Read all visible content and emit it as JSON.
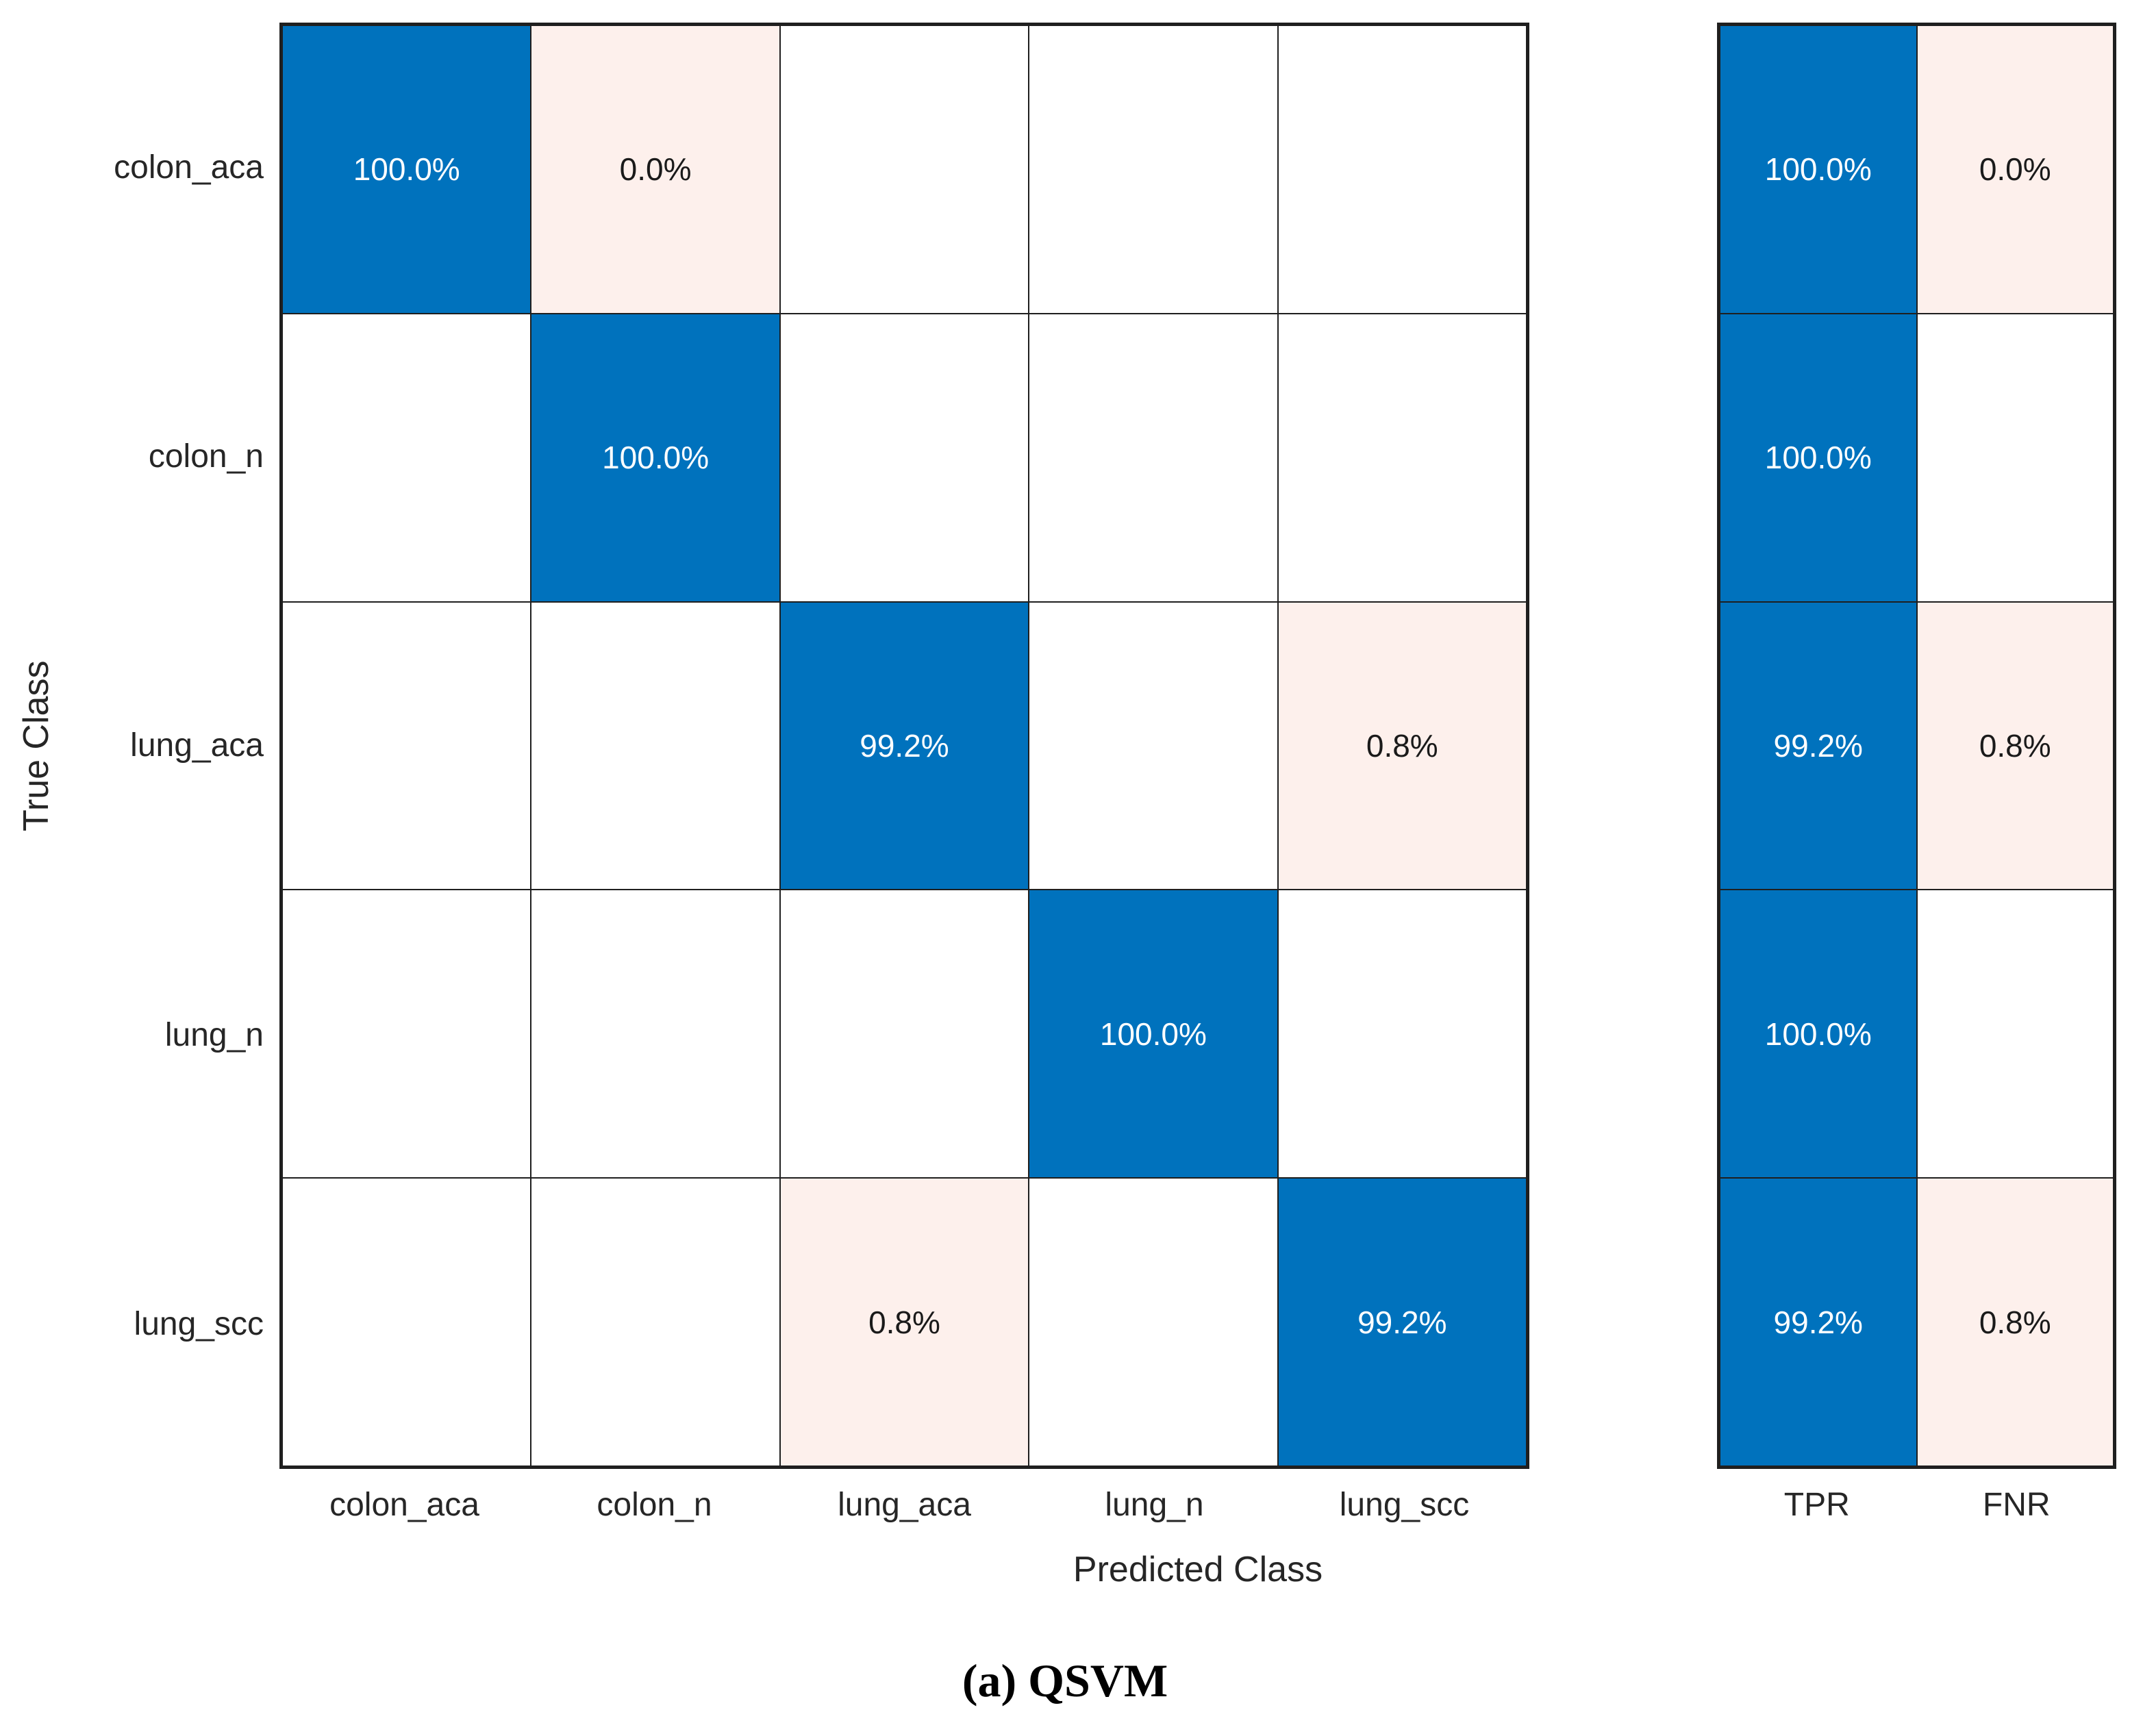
{
  "chart_data": {
    "type": "heatmap",
    "subtype": "confusion-matrix",
    "caption": "(a) QSVM",
    "xlabel": "Predicted Class",
    "ylabel": "True Class",
    "classes": [
      "colon_aca",
      "colon_n",
      "lung_aca",
      "lung_n",
      "lung_scc"
    ],
    "matrix_percent": [
      [
        100.0,
        0.0,
        null,
        null,
        null
      ],
      [
        null,
        100.0,
        null,
        null,
        null
      ],
      [
        null,
        null,
        99.2,
        null,
        0.8
      ],
      [
        null,
        null,
        null,
        100.0,
        null
      ],
      [
        null,
        null,
        0.8,
        null,
        99.2
      ]
    ],
    "row_summary": {
      "columns": [
        "TPR",
        "FNR"
      ],
      "values_percent": [
        [
          100.0,
          0.0
        ],
        [
          100.0,
          null
        ],
        [
          99.2,
          0.8
        ],
        [
          100.0,
          null
        ],
        [
          99.2,
          0.8
        ]
      ]
    },
    "legend_position": "none",
    "grid": true,
    "colors": {
      "diagonal_fill": "#0072BD",
      "offdiagonal_tint_fill": "#FDF0EC",
      "empty_fill": "#FFFFFF",
      "grid_line": "#1F1F1F",
      "text_on_blue": "#FFFFFF",
      "text_on_tint": "#1A1A1A",
      "tick_text": "#262626"
    }
  },
  "axes": {
    "ylabel": "True Class",
    "xlabel": "Predicted Class",
    "row_tick_labels": [
      "colon_aca",
      "colon_n",
      "lung_aca",
      "lung_n",
      "lung_scc"
    ],
    "col_tick_labels": [
      "colon_aca",
      "colon_n",
      "lung_aca",
      "lung_n",
      "lung_scc"
    ]
  },
  "main_matrix": {
    "rows": [
      {
        "cells": [
          {
            "text": "100.0%",
            "bg": "blue"
          },
          {
            "text": "0.0%",
            "bg": "tint"
          },
          {
            "text": "",
            "bg": "white"
          },
          {
            "text": "",
            "bg": "white"
          },
          {
            "text": "",
            "bg": "white"
          }
        ]
      },
      {
        "cells": [
          {
            "text": "",
            "bg": "white"
          },
          {
            "text": "100.0%",
            "bg": "blue"
          },
          {
            "text": "",
            "bg": "white"
          },
          {
            "text": "",
            "bg": "white"
          },
          {
            "text": "",
            "bg": "white"
          }
        ]
      },
      {
        "cells": [
          {
            "text": "",
            "bg": "white"
          },
          {
            "text": "",
            "bg": "white"
          },
          {
            "text": "99.2%",
            "bg": "blue"
          },
          {
            "text": "",
            "bg": "white"
          },
          {
            "text": "0.8%",
            "bg": "tint"
          }
        ]
      },
      {
        "cells": [
          {
            "text": "",
            "bg": "white"
          },
          {
            "text": "",
            "bg": "white"
          },
          {
            "text": "",
            "bg": "white"
          },
          {
            "text": "100.0%",
            "bg": "blue"
          },
          {
            "text": "",
            "bg": "white"
          }
        ]
      },
      {
        "cells": [
          {
            "text": "",
            "bg": "white"
          },
          {
            "text": "",
            "bg": "white"
          },
          {
            "text": "0.8%",
            "bg": "tint"
          },
          {
            "text": "",
            "bg": "white"
          },
          {
            "text": "99.2%",
            "bg": "blue"
          }
        ]
      }
    ]
  },
  "summary_matrix": {
    "col_labels": [
      "TPR",
      "FNR"
    ],
    "rows": [
      {
        "cells": [
          {
            "text": "100.0%",
            "bg": "blue"
          },
          {
            "text": "0.0%",
            "bg": "tint"
          }
        ]
      },
      {
        "cells": [
          {
            "text": "100.0%",
            "bg": "blue"
          },
          {
            "text": "",
            "bg": "white"
          }
        ]
      },
      {
        "cells": [
          {
            "text": "99.2%",
            "bg": "blue"
          },
          {
            "text": "0.8%",
            "bg": "tint"
          }
        ]
      },
      {
        "cells": [
          {
            "text": "100.0%",
            "bg": "blue"
          },
          {
            "text": "",
            "bg": "white"
          }
        ]
      },
      {
        "cells": [
          {
            "text": "99.2%",
            "bg": "blue"
          },
          {
            "text": "0.8%",
            "bg": "tint"
          }
        ]
      }
    ]
  },
  "caption": {
    "text": "(a) QSVM"
  }
}
